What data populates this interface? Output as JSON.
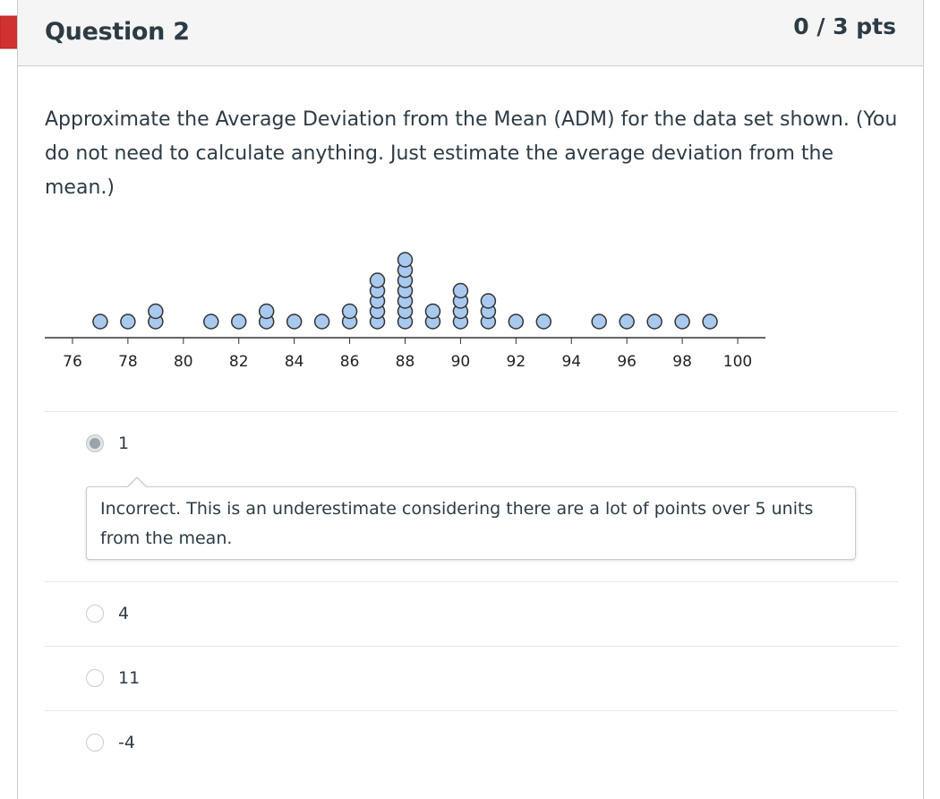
{
  "question": {
    "title": "Question 2",
    "points": "0 / 3 pts",
    "text": "Approximate the Average Deviation from the Mean (ADM) for the data set shown. (You do not need to calculate anything. Just estimate the average deviation from the mean.)"
  },
  "chart_data": {
    "type": "scatter",
    "subtype": "dot_plot",
    "xlim": [
      75,
      101
    ],
    "ticks": [
      76,
      78,
      80,
      82,
      84,
      86,
      88,
      90,
      92,
      94,
      96,
      98,
      100
    ],
    "tick_labels": [
      "76",
      "78",
      "80",
      "82",
      "84",
      "86",
      "88",
      "90",
      "92",
      "94",
      "96",
      "98",
      "100"
    ],
    "points": [
      {
        "x": 77,
        "count": 1
      },
      {
        "x": 78,
        "count": 1
      },
      {
        "x": 79,
        "count": 2
      },
      {
        "x": 81,
        "count": 1
      },
      {
        "x": 82,
        "count": 1
      },
      {
        "x": 83,
        "count": 2
      },
      {
        "x": 84,
        "count": 1
      },
      {
        "x": 85,
        "count": 1
      },
      {
        "x": 86,
        "count": 2
      },
      {
        "x": 87,
        "count": 5
      },
      {
        "x": 88,
        "count": 7
      },
      {
        "x": 89,
        "count": 2
      },
      {
        "x": 90,
        "count": 4
      },
      {
        "x": 91,
        "count": 3
      },
      {
        "x": 92,
        "count": 1
      },
      {
        "x": 93,
        "count": 1
      },
      {
        "x": 95,
        "count": 1
      },
      {
        "x": 96,
        "count": 1
      },
      {
        "x": 97,
        "count": 1
      },
      {
        "x": 98,
        "count": 1
      },
      {
        "x": 99,
        "count": 1
      }
    ],
    "colors": {
      "dot_fill": "#a9c9ef",
      "dot_stroke": "#333333",
      "axis": "#333333"
    }
  },
  "answers": [
    {
      "label": "1",
      "selected": true
    },
    {
      "label": "4",
      "selected": false
    },
    {
      "label": "11",
      "selected": false
    },
    {
      "label": "-4",
      "selected": false
    }
  ],
  "feedback": {
    "text": "Incorrect. This is an underestimate considering there are a lot of points over 5 units from the mean."
  },
  "colors": {
    "flag": "#d03030",
    "header_bg": "#f5f5f5"
  }
}
